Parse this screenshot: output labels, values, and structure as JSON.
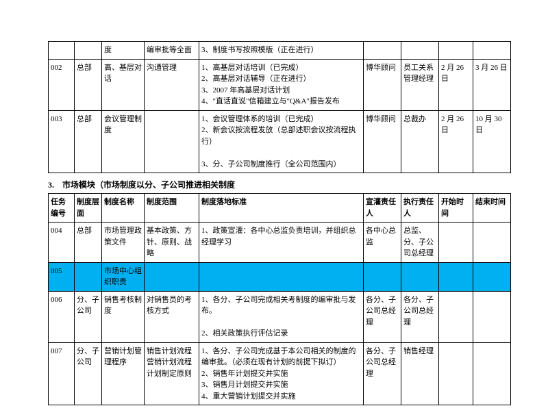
{
  "table1": {
    "rows": [
      {
        "id": "",
        "level": "",
        "name": "度",
        "scope": "编审批等全面",
        "standard": "3、制度书写按照模版（正在进行）",
        "owner1": "",
        "owner2": "",
        "start": "",
        "end": ""
      },
      {
        "id": "002",
        "level": "总部",
        "name": "高、基层对话",
        "scope": "沟通管理",
        "standard": "1、高基层对话培训（已完成）\n2、高基层对话辅导（正在进行）\n3、2007 年高基层对话计划\n4、\"直话直说\"信箱建立与\"Q&A\"报告发布",
        "owner1": "博华顾问",
        "owner2": "员工关系管理经理",
        "start": "2 月 26 日",
        "end": "3 月 26 日"
      },
      {
        "id": "003",
        "level": "总部",
        "name": "会议管理制度",
        "scope": "",
        "standard": "1、会议管理体系的培训（已完成）\n2、新会议按流程发放（总部述职会议按流程执行）\n\n3、分、子公司制度推行（全公司范围内）",
        "owner1": "博华顾问",
        "owner2": "总裁办",
        "start": "2 月 26 日",
        "end": "10 月 30 日"
      }
    ]
  },
  "section2_title": "3.　市场模块（市场制度以分、子公司推进相关制度",
  "table2": {
    "headers": {
      "id": "任务编号",
      "level": "制度层面",
      "name": "制度名称",
      "scope": "制度范围",
      "standard": "制度落地标准",
      "owner1": "宣灌责任人",
      "owner2": "执行责任人",
      "start": "开始时间",
      "end": "结束时间"
    },
    "rows": [
      {
        "id": "004",
        "level": "总部",
        "name": "市场管理政策文件",
        "scope": "基本政策、方针、原则、战略",
        "standard": "1、政策宣灌：各中心总监负责培训，并组织总经理学习",
        "owner1": "各中心总监",
        "owner2": "总监、分、子公司总经理",
        "start": "",
        "end": "",
        "highlight": false
      },
      {
        "id": "005",
        "level": "",
        "name": "市场中心组织职责",
        "scope": "",
        "standard": "",
        "owner1": "",
        "owner2": "",
        "start": "",
        "end": "",
        "highlight": true
      },
      {
        "id": "006",
        "level": "分、子公司",
        "name": "销售考核制度",
        "scope": "对销售员的考核方式",
        "standard": "1、各分、子公司完成相关考制度的编审批与发布。\n\n2、相关政策执行评估记录",
        "owner1": "各分、子公司总经理",
        "owner2": "各分、子公司总经理",
        "start": "",
        "end": "",
        "highlight": false
      },
      {
        "id": "007",
        "level": "分、子公司",
        "name": "营销计划管理程序",
        "scope": "销售计划流程营销计划流程计划制定原则",
        "standard": "1、各分、子公司完成基于本公司相关的制度的编审批。（必须在现有计划的前提下拟订）\n2、销售年计划提交并实施\n3、销售月计划提交并实施\n4、重大营销计划提交并实施",
        "owner1": "各分、子公司总经理",
        "owner2": "销售经理",
        "start": "",
        "end": "",
        "highlight": false
      }
    ]
  }
}
